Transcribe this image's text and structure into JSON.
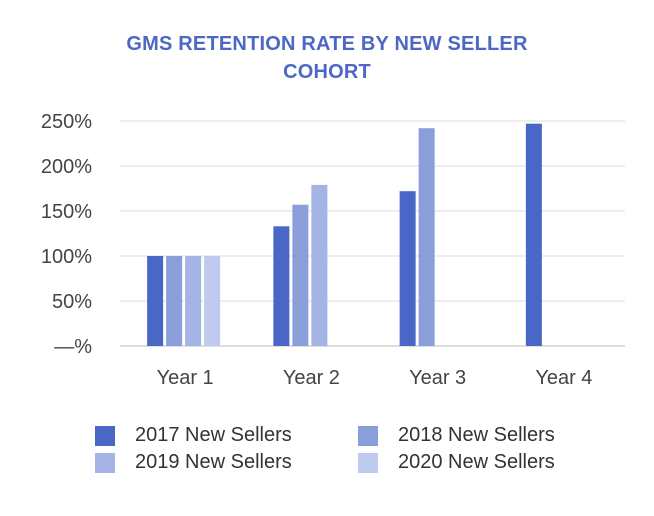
{
  "chart_data": {
    "type": "bar",
    "title_lines": [
      "GMS RETENTION RATE BY NEW SELLER",
      "COHORT"
    ],
    "categories": [
      "Year 1",
      "Year 2",
      "Year 3",
      "Year 4"
    ],
    "series": [
      {
        "name": "2017 New Sellers",
        "color": "#4a66c7",
        "values": [
          100,
          133,
          172,
          247
        ]
      },
      {
        "name": "2018 New Sellers",
        "color": "#8a9fda",
        "values": [
          100,
          157,
          242,
          null
        ]
      },
      {
        "name": "2019 New Sellers",
        "color": "#a4b4e4",
        "values": [
          100,
          179,
          null,
          null
        ]
      },
      {
        "name": "2020 New Sellers",
        "color": "#bfcbee",
        "values": [
          100,
          null,
          null,
          null
        ]
      }
    ],
    "ylim": [
      0,
      250
    ],
    "yticks": [
      0,
      50,
      100,
      150,
      200,
      250
    ],
    "ytick_labels": [
      "—%",
      "50%",
      "100%",
      "150%",
      "200%",
      "250%"
    ],
    "grid": true,
    "legend": "bottom"
  }
}
